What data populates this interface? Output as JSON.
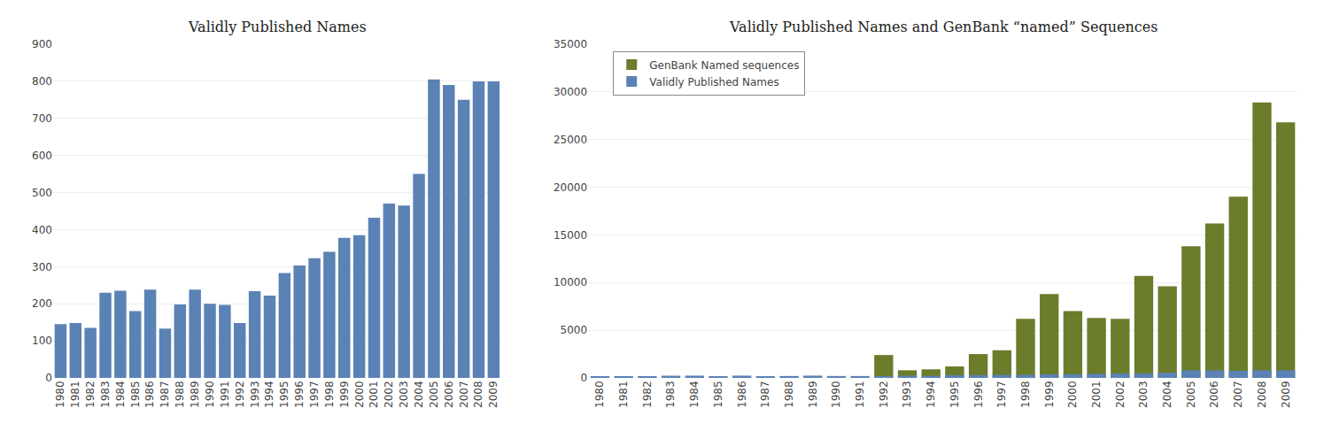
{
  "chart_data": [
    {
      "type": "bar",
      "title": "Validly Published Names",
      "categories": [
        "1980",
        "1981",
        "1982",
        "1983",
        "1984",
        "1985",
        "1986",
        "1987",
        "1988",
        "1989",
        "1990",
        "1991",
        "1992",
        "1993",
        "1994",
        "1995",
        "1996",
        "1997",
        "1998",
        "1999",
        "2000",
        "2001",
        "2002",
        "2003",
        "2004",
        "2005",
        "2006",
        "2007",
        "2008",
        "2009"
      ],
      "values": [
        145,
        148,
        135,
        230,
        235,
        180,
        238,
        133,
        198,
        238,
        200,
        197,
        148,
        234,
        222,
        283,
        303,
        323,
        340,
        378,
        385,
        432,
        470,
        465,
        550,
        805,
        790,
        750,
        800,
        800
      ],
      "color": "#5b82b5",
      "ylim": [
        0,
        900
      ],
      "yticks": [
        0,
        100,
        200,
        300,
        400,
        500,
        600,
        700,
        800,
        900
      ],
      "grid": true
    },
    {
      "type": "bar",
      "title": "Validly Published Names and GenBank “named” Sequences",
      "categories": [
        "1980",
        "1981",
        "1982",
        "1983",
        "1984",
        "1985",
        "1986",
        "1987",
        "1988",
        "1989",
        "1990",
        "1991",
        "1992",
        "1993",
        "1994",
        "1995",
        "1996",
        "1997",
        "1998",
        "1999",
        "2000",
        "2001",
        "2002",
        "2003",
        "2004",
        "2005",
        "2006",
        "2007",
        "2008",
        "2009"
      ],
      "series": [
        {
          "name": "GenBank Named sequences",
          "color": "#6b7c2a",
          "values": [
            0,
            0,
            0,
            0,
            0,
            0,
            0,
            0,
            0,
            0,
            0,
            0,
            2400,
            800,
            900,
            1200,
            2500,
            2900,
            6200,
            8800,
            7000,
            6300,
            6200,
            10700,
            9600,
            13800,
            16200,
            19000,
            28900,
            26800
          ]
        },
        {
          "name": "Validly Published Names",
          "color": "#5b82b5",
          "values": [
            145,
            148,
            135,
            230,
            235,
            180,
            238,
            133,
            198,
            238,
            200,
            197,
            148,
            234,
            222,
            283,
            303,
            323,
            340,
            378,
            385,
            432,
            470,
            465,
            550,
            805,
            790,
            750,
            800,
            800
          ]
        }
      ],
      "stacked": false,
      "ylim": [
        0,
        35000
      ],
      "yticks": [
        0,
        5000,
        10000,
        15000,
        20000,
        25000,
        30000,
        35000
      ],
      "grid": true,
      "legend": "upper left"
    }
  ]
}
